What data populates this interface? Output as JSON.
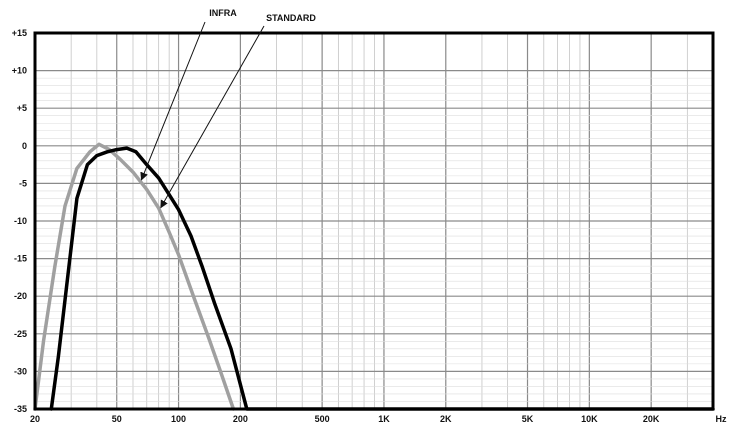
{
  "chart_data": {
    "type": "line",
    "x_scale": "log",
    "xlim": [
      20,
      40000
    ],
    "ylim": [
      -35,
      15
    ],
    "grid": true,
    "xlabel": "",
    "ylabel": "",
    "x_unit_label": "Hz",
    "x_ticks": [
      {
        "value": 20,
        "label": "20"
      },
      {
        "value": 50,
        "label": "50"
      },
      {
        "value": 100,
        "label": "100"
      },
      {
        "value": 200,
        "label": "200"
      },
      {
        "value": 500,
        "label": "500"
      },
      {
        "value": 1000,
        "label": "1K"
      },
      {
        "value": 2000,
        "label": "2K"
      },
      {
        "value": 5000,
        "label": "5K"
      },
      {
        "value": 10000,
        "label": "10K"
      },
      {
        "value": 20000,
        "label": "20K"
      }
    ],
    "y_ticks": [
      {
        "value": 15,
        "label": "+15"
      },
      {
        "value": 10,
        "label": "+10"
      },
      {
        "value": 5,
        "label": "+5"
      },
      {
        "value": 0,
        "label": "0"
      },
      {
        "value": -5,
        "label": "-5"
      },
      {
        "value": -10,
        "label": "-10"
      },
      {
        "value": -15,
        "label": "-15"
      },
      {
        "value": -20,
        "label": "-20"
      },
      {
        "value": -25,
        "label": "-25"
      },
      {
        "value": -30,
        "label": "-30"
      },
      {
        "value": -35,
        "label": "-35"
      }
    ],
    "series": [
      {
        "name": "INFRA",
        "color": "#a0a0a0",
        "points": [
          [
            20,
            -35
          ],
          [
            22,
            -26
          ],
          [
            25,
            -16
          ],
          [
            28,
            -8
          ],
          [
            32,
            -3
          ],
          [
            37,
            -0.8
          ],
          [
            41,
            0.2
          ],
          [
            46,
            -0.5
          ],
          [
            52,
            -1.8
          ],
          [
            60,
            -3.5
          ],
          [
            70,
            -5.8
          ],
          [
            80,
            -8.3
          ],
          [
            90,
            -11.5
          ],
          [
            100,
            -14.5
          ],
          [
            120,
            -20.5
          ],
          [
            140,
            -25.5
          ],
          [
            160,
            -30
          ],
          [
            185,
            -35
          ]
        ]
      },
      {
        "name": "STANDARD",
        "color": "#000000",
        "points": [
          [
            24,
            -35
          ],
          [
            26,
            -28
          ],
          [
            29,
            -17
          ],
          [
            32,
            -7
          ],
          [
            36,
            -2.5
          ],
          [
            40,
            -1.3
          ],
          [
            45,
            -0.8
          ],
          [
            50,
            -0.5
          ],
          [
            56,
            -0.3
          ],
          [
            62,
            -0.8
          ],
          [
            70,
            -2.5
          ],
          [
            80,
            -4.3
          ],
          [
            90,
            -6.5
          ],
          [
            100,
            -8.5
          ],
          [
            115,
            -12
          ],
          [
            130,
            -16
          ],
          [
            150,
            -21
          ],
          [
            180,
            -27
          ],
          [
            215,
            -35
          ],
          [
            40000,
            -35
          ]
        ]
      }
    ],
    "annotations": [
      {
        "text": "INFRA",
        "series": "INFRA",
        "points_to": [
          66,
          -4.5
        ]
      },
      {
        "text": "STANDARD",
        "series": "STANDARD",
        "points_to": [
          82,
          -8.2
        ]
      }
    ]
  }
}
